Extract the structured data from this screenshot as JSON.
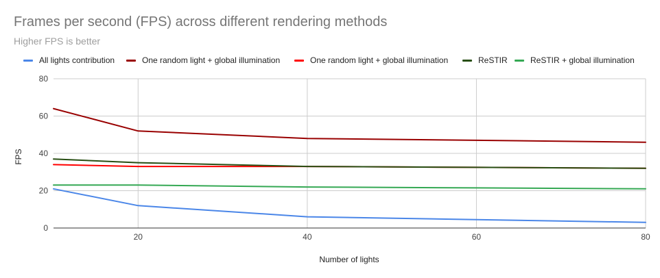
{
  "chart_data": {
    "type": "line",
    "title": "Frames per second (FPS) across different rendering methods",
    "subtitle": "Higher FPS is better",
    "xlabel": "Number of lights",
    "ylabel": "FPS",
    "x": [
      10,
      20,
      40,
      60,
      80
    ],
    "xlim": [
      10,
      80
    ],
    "ylim": [
      0,
      80
    ],
    "x_ticks": [
      20,
      40,
      60,
      80
    ],
    "y_ticks": [
      0,
      20,
      40,
      60,
      80
    ],
    "grid": true,
    "legend_position": "top",
    "series": [
      {
        "name": "All lights contribution",
        "color": "#4a86e8",
        "values": [
          21,
          12,
          6,
          4.5,
          3
        ]
      },
      {
        "name": "One random light + global illumination",
        "color": "#990000",
        "values": [
          64,
          52,
          48,
          47,
          46
        ]
      },
      {
        "name": "One random light + global illumination",
        "color": "#ff0000",
        "values": [
          34,
          33,
          33,
          32.5,
          32
        ]
      },
      {
        "name": "ReSTIR",
        "color": "#274e13",
        "values": [
          37,
          35,
          33,
          32.5,
          32
        ]
      },
      {
        "name": "ReSTIR + global illumination",
        "color": "#34a853",
        "values": [
          23,
          23,
          22,
          21.5,
          21
        ]
      }
    ]
  }
}
